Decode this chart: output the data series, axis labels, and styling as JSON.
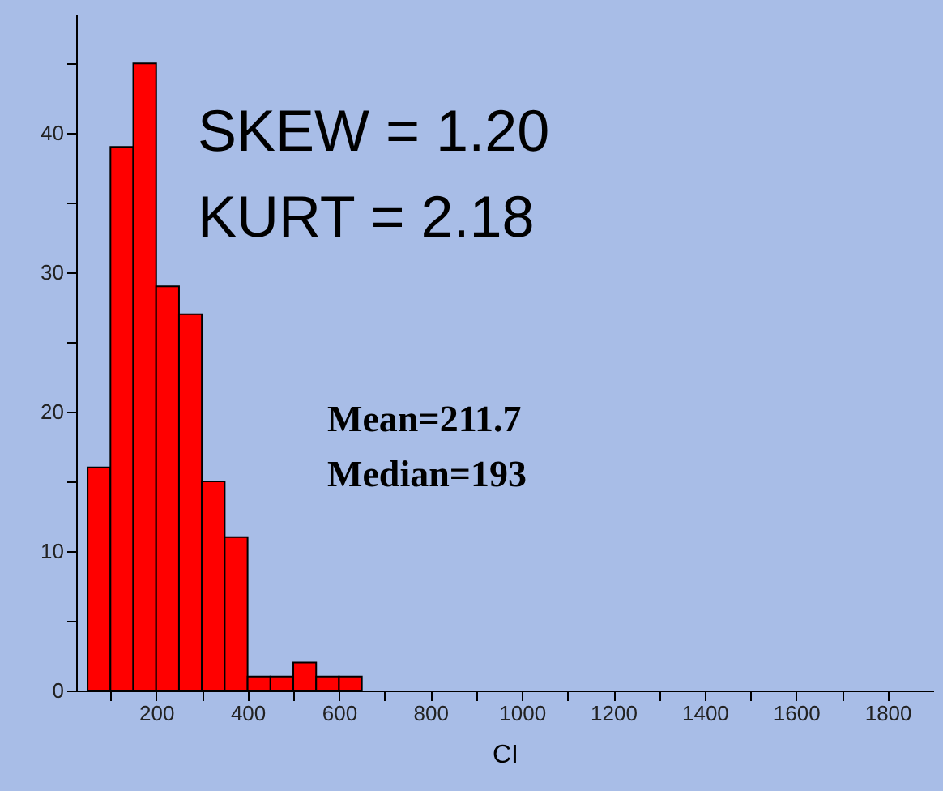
{
  "chart_data": {
    "type": "histogram",
    "xlabel": "CI",
    "bins": [
      50,
      100,
      150,
      200,
      250,
      300,
      350,
      400,
      450,
      500,
      550,
      600,
      650
    ],
    "values": [
      16,
      39,
      45,
      29,
      27,
      15,
      11,
      1,
      1,
      2,
      1,
      1
    ],
    "color": "#ff0000",
    "xlim": [
      25,
      1900
    ],
    "xticks": [
      {
        "value": 100,
        "label": null
      },
      200,
      {
        "value": 300,
        "label": null
      },
      400,
      {
        "value": 500,
        "label": null
      },
      600,
      {
        "value": 700,
        "label": null
      },
      800,
      {
        "value": 900,
        "label": null
      },
      1000,
      {
        "value": 1100,
        "label": null
      },
      1200,
      {
        "value": 1300,
        "label": null
      },
      1400,
      {
        "value": 1500,
        "label": null
      },
      1600,
      {
        "value": 1700,
        "label": null
      },
      1800
    ],
    "ylim": [
      0,
      48.5
    ],
    "yticks": [
      0,
      {
        "value": 5,
        "label": null
      },
      10,
      {
        "value": 15,
        "label": null
      },
      20,
      {
        "value": 25,
        "label": null
      },
      30,
      {
        "value": 35,
        "label": null
      },
      40,
      {
        "value": 45,
        "label": null
      }
    ],
    "annotations": [
      "SKEW = 1.20",
      "KURT = 2.18",
      "Mean=211.7",
      "Median=193"
    ],
    "grid": false
  }
}
